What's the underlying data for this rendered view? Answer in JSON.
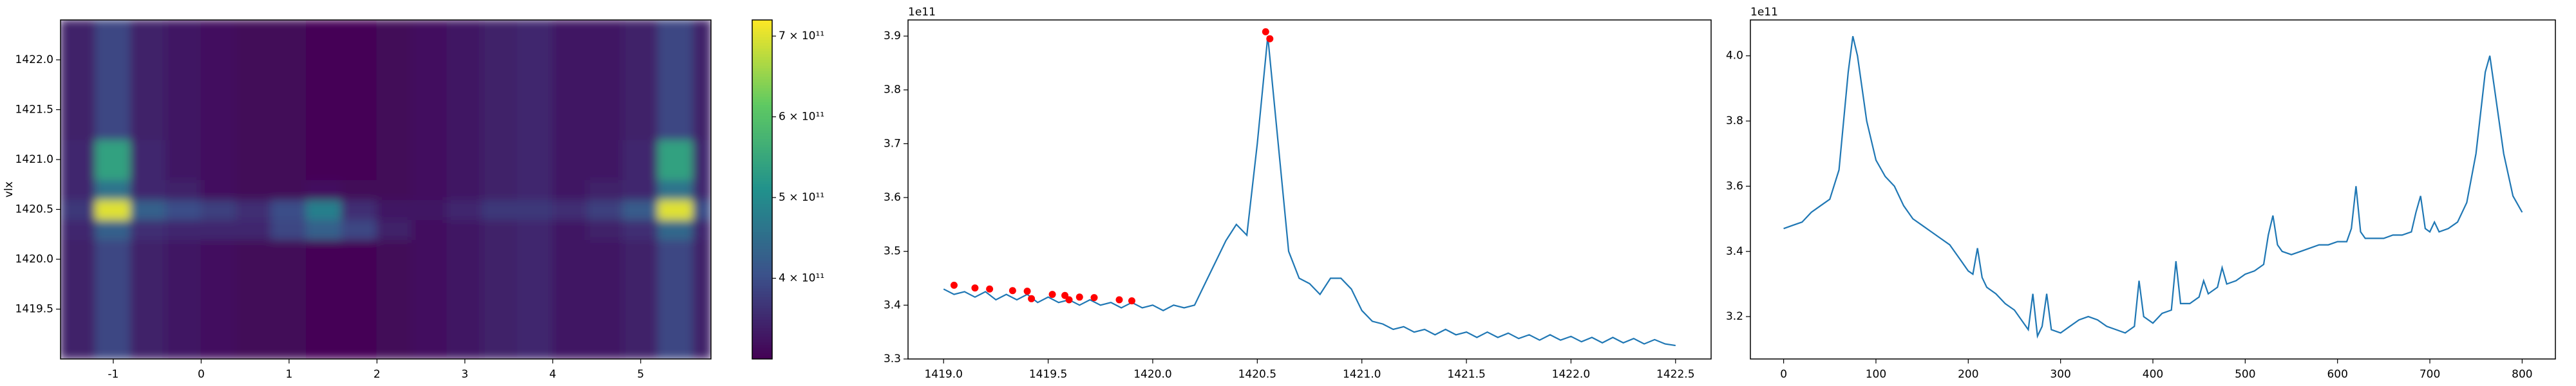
{
  "chart_data": [
    {
      "type": "heatmap",
      "ylabel": "vlx",
      "x_edges": [
        -1.6,
        -1.2,
        -0.8,
        -0.4,
        0,
        0.4,
        0.8,
        1.2,
        1.6,
        2.0,
        2.4,
        2.8,
        3.2,
        3.6,
        4.0,
        4.4,
        4.8,
        5.2,
        5.6,
        5.8
      ],
      "y_edges": [
        1419.0,
        1419.4,
        1419.8,
        1420.2,
        1420.4,
        1420.6,
        1420.8,
        1421.2,
        1421.6,
        1422.0,
        1422.4
      ],
      "z": [
        [
          340000000000.0,
          390000000000.0,
          340000000000.0,
          330000000000.0,
          320000000000.0,
          310000000000.0,
          310000000000.0,
          305000000000.0,
          305000000000.0,
          310000000000.0,
          320000000000.0,
          330000000000.0,
          340000000000.0,
          350000000000.0,
          330000000000.0,
          330000000000.0,
          340000000000.0,
          390000000000.0,
          340000000000.0
        ],
        [
          340000000000.0,
          390000000000.0,
          340000000000.0,
          330000000000.0,
          320000000000.0,
          310000000000.0,
          310000000000.0,
          305000000000.0,
          305000000000.0,
          310000000000.0,
          320000000000.0,
          330000000000.0,
          340000000000.0,
          350000000000.0,
          330000000000.0,
          330000000000.0,
          340000000000.0,
          390000000000.0,
          340000000000.0
        ],
        [
          340000000000.0,
          390000000000.0,
          340000000000.0,
          330000000000.0,
          320000000000.0,
          310000000000.0,
          310000000000.0,
          305000000000.0,
          305000000000.0,
          310000000000.0,
          320000000000.0,
          330000000000.0,
          340000000000.0,
          350000000000.0,
          330000000000.0,
          330000000000.0,
          340000000000.0,
          390000000000.0,
          340000000000.0
        ],
        [
          350000000000.0,
          430000000000.0,
          360000000000.0,
          350000000000.0,
          350000000000.0,
          350000000000.0,
          390000000000.0,
          430000000000.0,
          390000000000.0,
          340000000000.0,
          320000000000.0,
          330000000000.0,
          340000000000.0,
          350000000000.0,
          330000000000.0,
          340000000000.0,
          360000000000.0,
          440000000000.0,
          350000000000.0
        ],
        [
          370000000000.0,
          700000000000.0,
          430000000000.0,
          400000000000.0,
          380000000000.0,
          360000000000.0,
          400000000000.0,
          480000000000.0,
          360000000000.0,
          330000000000.0,
          330000000000.0,
          350000000000.0,
          370000000000.0,
          370000000000.0,
          360000000000.0,
          380000000000.0,
          420000000000.0,
          700000000000.0,
          400000000000.0
        ],
        [
          350000000000.0,
          460000000000.0,
          350000000000.0,
          340000000000.0,
          320000000000.0,
          310000000000.0,
          310000000000.0,
          320000000000.0,
          310000000000.0,
          310000000000.0,
          320000000000.0,
          330000000000.0,
          340000000000.0,
          350000000000.0,
          330000000000.0,
          340000000000.0,
          350000000000.0,
          460000000000.0,
          350000000000.0
        ],
        [
          350000000000.0,
          540000000000.0,
          350000000000.0,
          330000000000.0,
          320000000000.0,
          310000000000.0,
          310000000000.0,
          305000000000.0,
          305000000000.0,
          310000000000.0,
          320000000000.0,
          330000000000.0,
          340000000000.0,
          350000000000.0,
          330000000000.0,
          330000000000.0,
          350000000000.0,
          540000000000.0,
          350000000000.0
        ],
        [
          340000000000.0,
          390000000000.0,
          340000000000.0,
          330000000000.0,
          320000000000.0,
          310000000000.0,
          310000000000.0,
          305000000000.0,
          305000000000.0,
          310000000000.0,
          320000000000.0,
          330000000000.0,
          340000000000.0,
          350000000000.0,
          330000000000.0,
          330000000000.0,
          340000000000.0,
          390000000000.0,
          340000000000.0
        ],
        [
          340000000000.0,
          390000000000.0,
          340000000000.0,
          330000000000.0,
          320000000000.0,
          310000000000.0,
          310000000000.0,
          305000000000.0,
          305000000000.0,
          310000000000.0,
          320000000000.0,
          330000000000.0,
          340000000000.0,
          350000000000.0,
          330000000000.0,
          330000000000.0,
          340000000000.0,
          390000000000.0,
          340000000000.0
        ],
        [
          340000000000.0,
          390000000000.0,
          340000000000.0,
          330000000000.0,
          320000000000.0,
          310000000000.0,
          310000000000.0,
          305000000000.0,
          305000000000.0,
          310000000000.0,
          320000000000.0,
          330000000000.0,
          340000000000.0,
          350000000000.0,
          330000000000.0,
          330000000000.0,
          340000000000.0,
          390000000000.0,
          340000000000.0
        ]
      ],
      "colormap": [
        "#440154",
        "#3b528b",
        "#21918c",
        "#5ec962",
        "#fde725"
      ],
      "clim": [
        300000000000.0,
        720000000000.0
      ],
      "colorbar_ticks": [
        {
          "value": 400000000000.0,
          "label": "4 × 10¹¹"
        },
        {
          "value": 500000000000.0,
          "label": "5 × 10¹¹"
        },
        {
          "value": 600000000000.0,
          "label": "6 × 10¹¹"
        },
        {
          "value": 700000000000.0,
          "label": "7 × 10¹¹"
        }
      ],
      "xlim": [
        -1.6,
        5.8
      ],
      "ylim": [
        1419.0,
        1422.4
      ],
      "xticks": [
        -1,
        0,
        1,
        2,
        3,
        4,
        5
      ],
      "yticks": [
        1419.5,
        {
          "value": 1420,
          "label": "1420.0"
        },
        1420.5,
        {
          "value": 1421,
          "label": "1421.0"
        },
        1421.5,
        {
          "value": 1422,
          "label": "1422.0"
        }
      ]
    },
    {
      "type": "line",
      "offset_label": "1e11",
      "color": "#1f77b4",
      "x": [
        1419.0,
        1419.05,
        1419.1,
        1419.15,
        1419.2,
        1419.25,
        1419.3,
        1419.35,
        1419.4,
        1419.45,
        1419.5,
        1419.55,
        1419.6,
        1419.65,
        1419.7,
        1419.75,
        1419.8,
        1419.85,
        1419.9,
        1419.95,
        1420.0,
        1420.05,
        1420.1,
        1420.15,
        1420.2,
        1420.25,
        1420.3,
        1420.35,
        1420.4,
        1420.45,
        1420.5,
        1420.55,
        1420.6,
        1420.65,
        1420.7,
        1420.75,
        1420.8,
        1420.85,
        1420.9,
        1420.95,
        1421.0,
        1421.05,
        1421.1,
        1421.15,
        1421.2,
        1421.25,
        1421.3,
        1421.35,
        1421.4,
        1421.45,
        1421.5,
        1421.55,
        1421.6,
        1421.65,
        1421.7,
        1421.75,
        1421.8,
        1421.85,
        1421.9,
        1421.95,
        1422.0,
        1422.05,
        1422.1,
        1422.15,
        1422.2,
        1422.25,
        1422.3,
        1422.35,
        1422.4,
        1422.45,
        1422.5
      ],
      "values": [
        3.43,
        3.42,
        3.425,
        3.415,
        3.425,
        3.41,
        3.42,
        3.41,
        3.42,
        3.405,
        3.415,
        3.405,
        3.41,
        3.4,
        3.41,
        3.4,
        3.405,
        3.395,
        3.405,
        3.395,
        3.4,
        3.39,
        3.4,
        3.395,
        3.4,
        3.44,
        3.48,
        3.52,
        3.55,
        3.53,
        3.7,
        3.9,
        3.7,
        3.5,
        3.45,
        3.44,
        3.42,
        3.45,
        3.45,
        3.43,
        3.39,
        3.37,
        3.365,
        3.355,
        3.36,
        3.35,
        3.355,
        3.345,
        3.355,
        3.345,
        3.35,
        3.34,
        3.35,
        3.34,
        3.348,
        3.338,
        3.345,
        3.335,
        3.345,
        3.335,
        3.342,
        3.332,
        3.34,
        3.33,
        3.34,
        3.33,
        3.338,
        3.328,
        3.336,
        3.328,
        3.325
      ],
      "markers": {
        "color": "red",
        "x": [
          1419.05,
          1419.15,
          1419.22,
          1419.33,
          1419.4,
          1419.42,
          1419.52,
          1419.58,
          1419.6,
          1419.65,
          1419.72,
          1419.84,
          1419.9,
          1420.54,
          1420.56
        ],
        "y": [
          3.437,
          3.432,
          3.43,
          3.427,
          3.426,
          3.412,
          3.42,
          3.418,
          3.41,
          3.415,
          3.414,
          3.41,
          3.408,
          3.908,
          3.895
        ]
      },
      "xlim": [
        1418.83,
        1422.67
      ],
      "ylim": [
        3.3,
        3.93
      ],
      "xticks": [
        {
          "value": 1419,
          "label": "1419.0"
        },
        1419.5,
        {
          "value": 1420,
          "label": "1420.0"
        },
        1420.5,
        {
          "value": 1421,
          "label": "1421.0"
        },
        1421.5,
        {
          "value": 1422,
          "label": "1422.0"
        },
        1422.5
      ],
      "yticks": [
        3.3,
        3.4,
        3.5,
        3.6,
        3.7,
        3.8,
        3.9
      ]
    },
    {
      "type": "line",
      "offset_label": "1e11",
      "color": "#1f77b4",
      "x": [
        0,
        10,
        20,
        30,
        40,
        50,
        60,
        70,
        75,
        80,
        90,
        100,
        110,
        120,
        130,
        140,
        150,
        160,
        170,
        180,
        190,
        200,
        205,
        210,
        215,
        220,
        230,
        240,
        250,
        260,
        265,
        270,
        275,
        280,
        285,
        290,
        300,
        310,
        320,
        330,
        340,
        350,
        360,
        370,
        380,
        385,
        390,
        400,
        410,
        420,
        425,
        430,
        440,
        450,
        455,
        460,
        470,
        475,
        480,
        490,
        500,
        510,
        520,
        525,
        530,
        535,
        540,
        550,
        560,
        570,
        580,
        590,
        600,
        610,
        615,
        620,
        625,
        630,
        640,
        650,
        660,
        670,
        680,
        685,
        690,
        695,
        700,
        705,
        710,
        720,
        730,
        740,
        750,
        760,
        765,
        770,
        780,
        790,
        800
      ],
      "values": [
        3.47,
        3.48,
        3.49,
        3.52,
        3.54,
        3.56,
        3.65,
        3.95,
        4.06,
        4.0,
        3.8,
        3.68,
        3.63,
        3.6,
        3.54,
        3.5,
        3.48,
        3.46,
        3.44,
        3.42,
        3.38,
        3.34,
        3.33,
        3.41,
        3.32,
        3.29,
        3.27,
        3.24,
        3.22,
        3.18,
        3.16,
        3.27,
        3.14,
        3.17,
        3.27,
        3.16,
        3.15,
        3.17,
        3.19,
        3.2,
        3.19,
        3.17,
        3.16,
        3.15,
        3.17,
        3.31,
        3.2,
        3.18,
        3.21,
        3.22,
        3.37,
        3.24,
        3.24,
        3.26,
        3.31,
        3.27,
        3.29,
        3.35,
        3.3,
        3.31,
        3.33,
        3.34,
        3.36,
        3.45,
        3.51,
        3.42,
        3.4,
        3.39,
        3.4,
        3.41,
        3.42,
        3.42,
        3.43,
        3.43,
        3.47,
        3.6,
        3.46,
        3.44,
        3.44,
        3.44,
        3.45,
        3.45,
        3.46,
        3.52,
        3.57,
        3.47,
        3.46,
        3.49,
        3.46,
        3.47,
        3.49,
        3.55,
        3.7,
        3.95,
        4.0,
        3.9,
        3.7,
        3.57,
        3.52
      ],
      "xlim": [
        -36,
        836
      ],
      "ylim": [
        3.07,
        4.11
      ],
      "xticks": [
        0,
        100,
        200,
        300,
        400,
        500,
        600,
        700,
        800
      ],
      "yticks": [
        3.2,
        3.4,
        3.6,
        3.8,
        {
          "value": 4,
          "label": "4.0"
        }
      ]
    }
  ]
}
